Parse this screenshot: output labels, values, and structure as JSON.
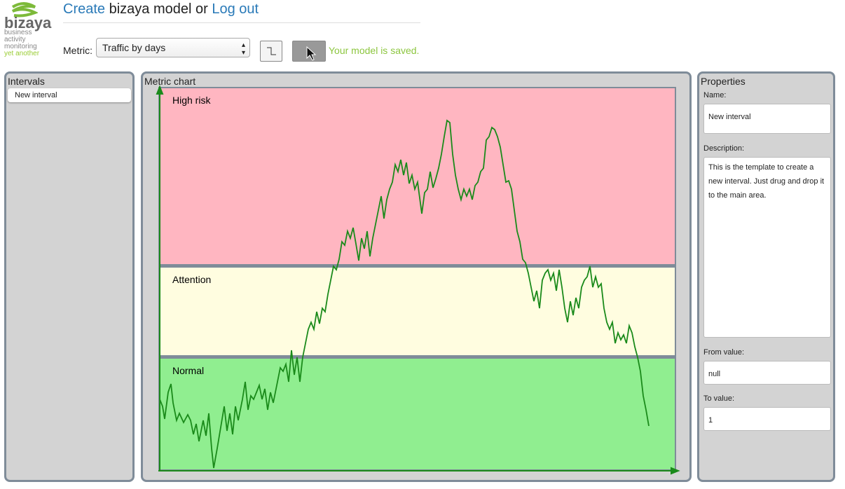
{
  "header": {
    "logo": {
      "name": "bizaya",
      "lines": [
        "business",
        "activity",
        "monitoring"
      ],
      "tagline": "yet another"
    },
    "create": "Create",
    "middle": "bizaya model or",
    "logout": "Log out",
    "metric_label": "Metric:",
    "metric_value": "Traffic by days",
    "status": "Your model is saved."
  },
  "intervals": {
    "title": "Intervals",
    "items": [
      "New interval"
    ]
  },
  "chart": {
    "title": "Metric chart",
    "bands": [
      "High risk",
      "Attention",
      "Normal"
    ]
  },
  "properties": {
    "title": "Properties",
    "fields": [
      {
        "label": "Name:",
        "value": "New interval"
      },
      {
        "label": "Description:",
        "value": "This is the template to create a new interval. Just drug and drop it to the main area."
      },
      {
        "label": "From value:",
        "value": "null"
      },
      {
        "label": "To value:",
        "value": "1"
      }
    ]
  }
}
